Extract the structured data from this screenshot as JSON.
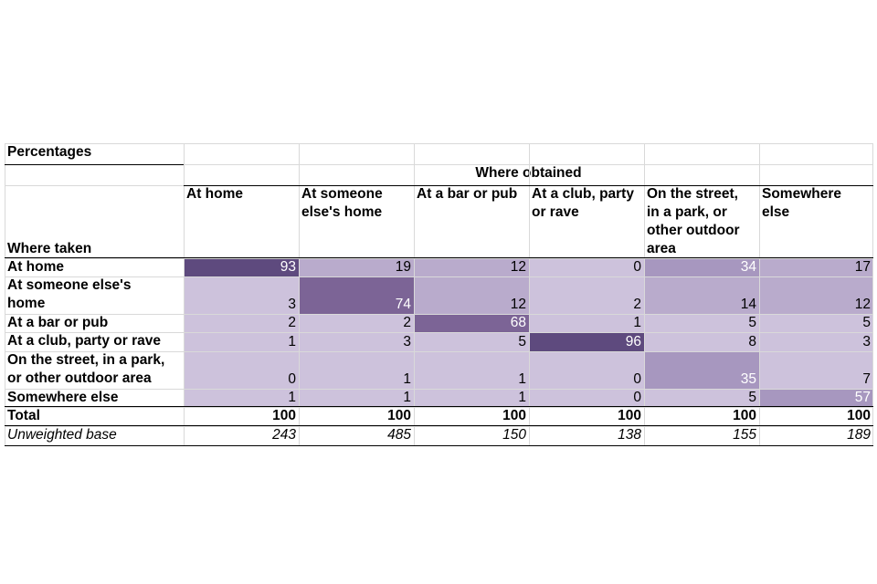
{
  "caption": "Percentages",
  "group_header": "Where obtained",
  "row_header_label": "Where taken",
  "columns": [
    {
      "label": "At home",
      "lines": [
        "At home"
      ]
    },
    {
      "label": "At someone else's home",
      "lines": [
        "At someone",
        "else's home"
      ]
    },
    {
      "label": "At a bar or pub",
      "lines": [
        "At a bar or pub"
      ]
    },
    {
      "label": "At a club, party or rave",
      "lines": [
        "At a club, party",
        "or rave"
      ]
    },
    {
      "label": "On the street, in a park, or other outdoor area",
      "lines": [
        "On the street,",
        "in a park, or",
        "other outdoor",
        "area"
      ]
    },
    {
      "label": "Somewhere else",
      "lines": [
        "Somewhere",
        "else"
      ]
    }
  ],
  "rows": [
    {
      "label": "At home",
      "lines": [
        "At home"
      ],
      "values": [
        93,
        19,
        12,
        0,
        34,
        17
      ]
    },
    {
      "label": "At someone else's home",
      "lines": [
        "At someone else's",
        "home"
      ],
      "values": [
        3,
        74,
        12,
        2,
        14,
        12
      ]
    },
    {
      "label": "At a bar or pub",
      "lines": [
        "At a bar or pub"
      ],
      "values": [
        2,
        2,
        68,
        1,
        5,
        5
      ]
    },
    {
      "label": "At a club, party or rave",
      "lines": [
        "At a club, party or rave"
      ],
      "values": [
        1,
        3,
        5,
        96,
        8,
        3
      ]
    },
    {
      "label": "On the street, in a park, or other outdoor area",
      "lines": [
        "On the street, in a park,",
        "or other outdoor area"
      ],
      "values": [
        0,
        1,
        1,
        0,
        35,
        7
      ]
    },
    {
      "label": "Somewhere else",
      "lines": [
        "Somewhere else"
      ],
      "values": [
        1,
        1,
        1,
        0,
        5,
        57
      ]
    }
  ],
  "total": {
    "label": "Total",
    "values": [
      100,
      100,
      100,
      100,
      100,
      100
    ]
  },
  "base": {
    "label": "Unweighted base",
    "values": [
      243,
      485,
      150,
      138,
      155,
      189
    ]
  },
  "colors": {
    "gridline": "#d9d9d9",
    "rule": "#000000",
    "heat_scale": [
      "#cdc2dc",
      "#b9abcc",
      "#a797bf",
      "#7c6496",
      "#5e4a7e"
    ],
    "background": "#ffffff"
  }
}
